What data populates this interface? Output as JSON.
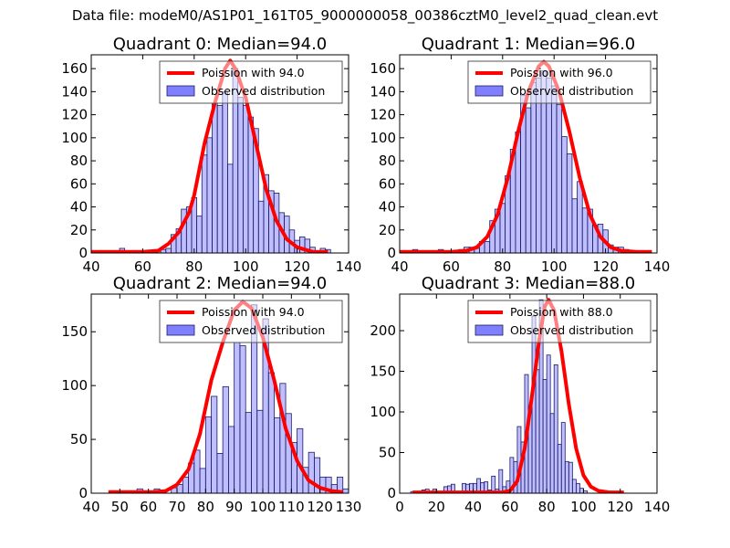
{
  "suptitle": "Data file: modeM0/AS1P01_161T05_9000000058_00386cztM0_level2_quad_clean.evt",
  "colors": {
    "bar_fill": "#8080ff",
    "bar_edge": "#1a1a66",
    "curve": "#ff0000",
    "axis": "#000000"
  },
  "chart_data": [
    {
      "type": "bar",
      "title": "Quadrant 0: Median=94.0",
      "xlim": [
        40,
        140
      ],
      "ylim": [
        0,
        172
      ],
      "xticks": [
        40,
        60,
        80,
        100,
        120,
        140
      ],
      "yticks": [
        0,
        20,
        40,
        60,
        80,
        100,
        120,
        140,
        160
      ],
      "legend": {
        "position": "top-right",
        "entries": [
          "Poission with 94.0",
          "Observed distribution"
        ]
      },
      "bin_width": 2,
      "bins": [
        [
          52,
          4
        ],
        [
          64,
          0
        ],
        [
          66,
          2
        ],
        [
          68,
          3
        ],
        [
          70,
          4
        ],
        [
          72,
          16
        ],
        [
          74,
          21
        ],
        [
          76,
          38
        ],
        [
          78,
          40
        ],
        [
          80,
          48
        ],
        [
          82,
          32
        ],
        [
          84,
          85
        ],
        [
          86,
          100
        ],
        [
          88,
          130
        ],
        [
          90,
          128
        ],
        [
          92,
          140
        ],
        [
          94,
          77
        ],
        [
          96,
          160
        ],
        [
          98,
          135
        ],
        [
          100,
          128
        ],
        [
          102,
          118
        ],
        [
          104,
          108
        ],
        [
          106,
          45
        ],
        [
          108,
          68
        ],
        [
          110,
          54
        ],
        [
          112,
          52
        ],
        [
          114,
          35
        ],
        [
          116,
          32
        ],
        [
          118,
          20
        ],
        [
          120,
          11
        ],
        [
          122,
          14
        ],
        [
          124,
          12
        ],
        [
          126,
          5
        ],
        [
          128,
          2
        ],
        [
          130,
          4
        ],
        [
          132,
          3
        ]
      ],
      "curve": [
        [
          40,
          1
        ],
        [
          50,
          1
        ],
        [
          60,
          1
        ],
        [
          66,
          2
        ],
        [
          70,
          8
        ],
        [
          74,
          18
        ],
        [
          78,
          35
        ],
        [
          80,
          50
        ],
        [
          84,
          95
        ],
        [
          88,
          130
        ],
        [
          92,
          160
        ],
        [
          94,
          167
        ],
        [
          96,
          160
        ],
        [
          100,
          135
        ],
        [
          104,
          95
        ],
        [
          108,
          55
        ],
        [
          112,
          28
        ],
        [
          116,
          12
        ],
        [
          120,
          5
        ],
        [
          126,
          1
        ],
        [
          132,
          1
        ]
      ]
    },
    {
      "type": "bar",
      "title": "Quadrant 1: Median=96.0",
      "xlim": [
        40,
        140
      ],
      "ylim": [
        0,
        172
      ],
      "xticks": [
        40,
        60,
        80,
        100,
        120,
        140
      ],
      "yticks": [
        0,
        20,
        40,
        60,
        80,
        100,
        120,
        140,
        160
      ],
      "legend": {
        "position": "top-right",
        "entries": [
          "Poission with 96.0",
          "Observed distribution"
        ]
      },
      "bin_width": 2,
      "bins": [
        [
          42,
          2
        ],
        [
          46,
          3
        ],
        [
          56,
          3
        ],
        [
          64,
          3
        ],
        [
          66,
          5
        ],
        [
          68,
          5
        ],
        [
          70,
          4
        ],
        [
          72,
          10
        ],
        [
          74,
          10
        ],
        [
          76,
          28
        ],
        [
          78,
          38
        ],
        [
          80,
          43
        ],
        [
          82,
          67
        ],
        [
          84,
          90
        ],
        [
          86,
          105
        ],
        [
          88,
          137
        ],
        [
          90,
          126
        ],
        [
          92,
          148
        ],
        [
          94,
          152
        ],
        [
          96,
          158
        ],
        [
          98,
          152
        ],
        [
          100,
          145
        ],
        [
          102,
          129
        ],
        [
          104,
          101
        ],
        [
          106,
          86
        ],
        [
          108,
          47
        ],
        [
          110,
          62
        ],
        [
          112,
          39
        ],
        [
          114,
          38
        ],
        [
          116,
          24
        ],
        [
          118,
          25
        ],
        [
          120,
          20
        ],
        [
          122,
          7
        ],
        [
          124,
          5
        ],
        [
          126,
          5
        ],
        [
          128,
          3
        ]
      ],
      "curve": [
        [
          40,
          1
        ],
        [
          50,
          1
        ],
        [
          60,
          1
        ],
        [
          66,
          2
        ],
        [
          70,
          5
        ],
        [
          74,
          14
        ],
        [
          78,
          33
        ],
        [
          82,
          65
        ],
        [
          86,
          105
        ],
        [
          90,
          140
        ],
        [
          94,
          162
        ],
        [
          96,
          166
        ],
        [
          98,
          162
        ],
        [
          102,
          140
        ],
        [
          106,
          105
        ],
        [
          110,
          65
        ],
        [
          114,
          33
        ],
        [
          118,
          14
        ],
        [
          122,
          5
        ],
        [
          126,
          2
        ],
        [
          132,
          1
        ],
        [
          138,
          1
        ]
      ]
    },
    {
      "type": "bar",
      "title": "Quadrant 2: Median=94.0",
      "xlim": [
        40,
        130
      ],
      "ylim": [
        0,
        185
      ],
      "xticks": [
        40,
        50,
        60,
        70,
        80,
        90,
        100,
        110,
        120,
        130
      ],
      "yticks": [
        0,
        50,
        100,
        150
      ],
      "legend": {
        "position": "top-right",
        "entries": [
          "Poission with 94.0",
          "Observed distribution"
        ]
      },
      "bin_width": 2,
      "bins": [
        [
          57,
          4
        ],
        [
          63,
          4
        ],
        [
          69,
          5
        ],
        [
          71,
          8
        ],
        [
          73,
          15
        ],
        [
          75,
          28
        ],
        [
          77,
          40
        ],
        [
          79,
          23
        ],
        [
          81,
          71
        ],
        [
          83,
          90
        ],
        [
          85,
          37
        ],
        [
          87,
          99
        ],
        [
          89,
          62
        ],
        [
          91,
          140
        ],
        [
          93,
          137
        ],
        [
          95,
          75
        ],
        [
          97,
          175
        ],
        [
          99,
          77
        ],
        [
          101,
          162
        ],
        [
          103,
          112
        ],
        [
          105,
          70
        ],
        [
          107,
          102
        ],
        [
          109,
          74
        ],
        [
          111,
          47
        ],
        [
          113,
          60
        ],
        [
          115,
          24
        ],
        [
          117,
          38
        ],
        [
          119,
          33
        ],
        [
          121,
          15
        ],
        [
          123,
          15
        ],
        [
          125,
          8
        ],
        [
          127,
          15
        ],
        [
          129,
          4
        ],
        [
          131,
          4
        ],
        [
          133,
          3
        ]
      ],
      "curve": [
        [
          46,
          1
        ],
        [
          56,
          1
        ],
        [
          62,
          1
        ],
        [
          66,
          2
        ],
        [
          70,
          8
        ],
        [
          74,
          22
        ],
        [
          78,
          55
        ],
        [
          82,
          105
        ],
        [
          86,
          140
        ],
        [
          90,
          170
        ],
        [
          93,
          178
        ],
        [
          96,
          172
        ],
        [
          100,
          145
        ],
        [
          104,
          105
        ],
        [
          108,
          60
        ],
        [
          112,
          30
        ],
        [
          116,
          12
        ],
        [
          120,
          5
        ],
        [
          124,
          2
        ],
        [
          128,
          1
        ]
      ]
    },
    {
      "type": "bar",
      "title": "Quadrant 3: Median=88.0",
      "xlim": [
        0,
        140
      ],
      "ylim": [
        0,
        245
      ],
      "xticks": [
        0,
        20,
        40,
        60,
        80,
        100,
        120,
        140
      ],
      "yticks": [
        0,
        50,
        100,
        150,
        200
      ],
      "legend": {
        "position": "top-right",
        "entries": [
          "Poission with 88.0",
          "Observed distribution"
        ]
      },
      "bin_width": 2,
      "bins": [
        [
          7,
          2
        ],
        [
          13,
          4
        ],
        [
          15,
          5
        ],
        [
          19,
          5
        ],
        [
          25,
          8
        ],
        [
          27,
          9
        ],
        [
          29,
          11
        ],
        [
          35,
          12
        ],
        [
          37,
          11
        ],
        [
          39,
          12
        ],
        [
          41,
          12
        ],
        [
          43,
          18
        ],
        [
          45,
          13
        ],
        [
          47,
          14
        ],
        [
          49,
          4
        ],
        [
          51,
          21
        ],
        [
          53,
          5
        ],
        [
          55,
          29
        ],
        [
          57,
          8
        ],
        [
          59,
          15
        ],
        [
          61,
          44
        ],
        [
          63,
          39
        ],
        [
          65,
          82
        ],
        [
          67,
          63
        ],
        [
          69,
          146
        ],
        [
          71,
          106
        ],
        [
          73,
          218
        ],
        [
          75,
          152
        ],
        [
          77,
          238
        ],
        [
          79,
          140
        ],
        [
          81,
          170
        ],
        [
          83,
          98
        ],
        [
          85,
          158
        ],
        [
          87,
          60
        ],
        [
          89,
          87
        ],
        [
          91,
          39
        ],
        [
          93,
          38
        ],
        [
          95,
          17
        ],
        [
          97,
          12
        ],
        [
          99,
          6
        ],
        [
          101,
          3
        ]
      ],
      "curve": [
        [
          7,
          1
        ],
        [
          20,
          1
        ],
        [
          40,
          1
        ],
        [
          56,
          1
        ],
        [
          60,
          3
        ],
        [
          64,
          15
        ],
        [
          68,
          55
        ],
        [
          72,
          120
        ],
        [
          76,
          190
        ],
        [
          79,
          230
        ],
        [
          81,
          238
        ],
        [
          84,
          225
        ],
        [
          88,
          175
        ],
        [
          92,
          110
        ],
        [
          96,
          55
        ],
        [
          100,
          22
        ],
        [
          104,
          8
        ],
        [
          108,
          3
        ],
        [
          114,
          1
        ],
        [
          122,
          1
        ]
      ]
    }
  ]
}
